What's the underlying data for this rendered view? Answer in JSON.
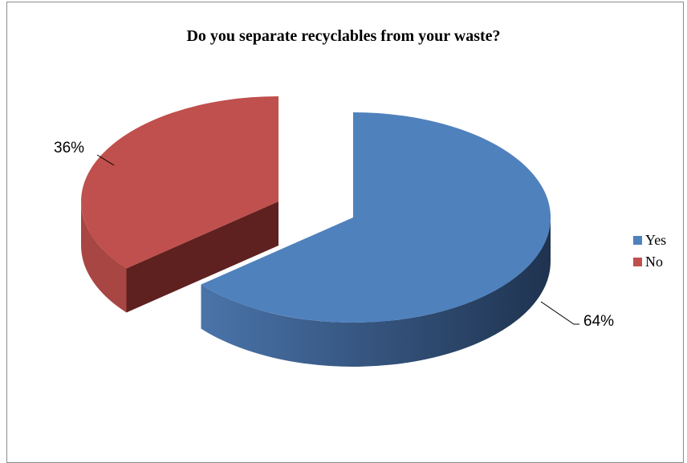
{
  "chart_data": {
    "type": "pie",
    "style": "3d-exploded",
    "title": "Do you separate recyclables from your waste?",
    "categories": [
      "Yes",
      "No"
    ],
    "values": [
      64,
      36
    ],
    "data_labels": [
      "64%",
      "36%"
    ],
    "colors": {
      "Yes": {
        "top": "#4F81BD",
        "side_dark": "#1F3350",
        "side_light": "#4A74AA"
      },
      "No": {
        "top": "#C0504D",
        "side_dark": "#5E2120",
        "side_light": "#A84643"
      }
    },
    "legend_position": "right"
  }
}
